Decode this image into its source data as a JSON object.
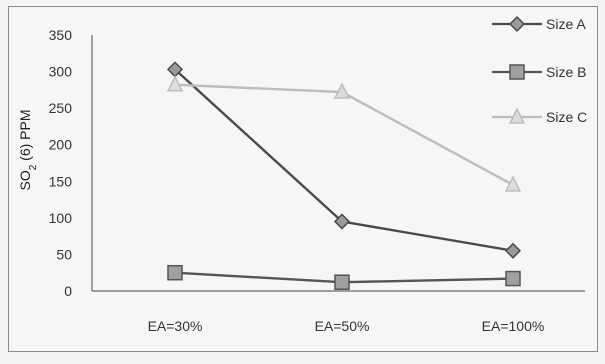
{
  "chart_data": {
    "type": "line",
    "categories": [
      "EA=30%",
      "EA=50%",
      "EA=100%"
    ],
    "series": [
      {
        "name": "Size A",
        "values": [
          303,
          95,
          55
        ],
        "color": "#4a4a4a",
        "marker": "diamond"
      },
      {
        "name": "Size B",
        "values": [
          25,
          12,
          17
        ],
        "color": "#555555",
        "marker": "square"
      },
      {
        "name": "Size C",
        "values": [
          282,
          272,
          145
        ],
        "color": "#bdbdbd",
        "marker": "triangle"
      }
    ],
    "title": "",
    "xlabel": "",
    "ylabel": "SO2 (6) PPM",
    "ylim": [
      0,
      350
    ],
    "yticks": [
      0,
      50,
      100,
      150,
      200,
      250,
      300,
      350
    ],
    "grid": false,
    "legend": "right"
  }
}
